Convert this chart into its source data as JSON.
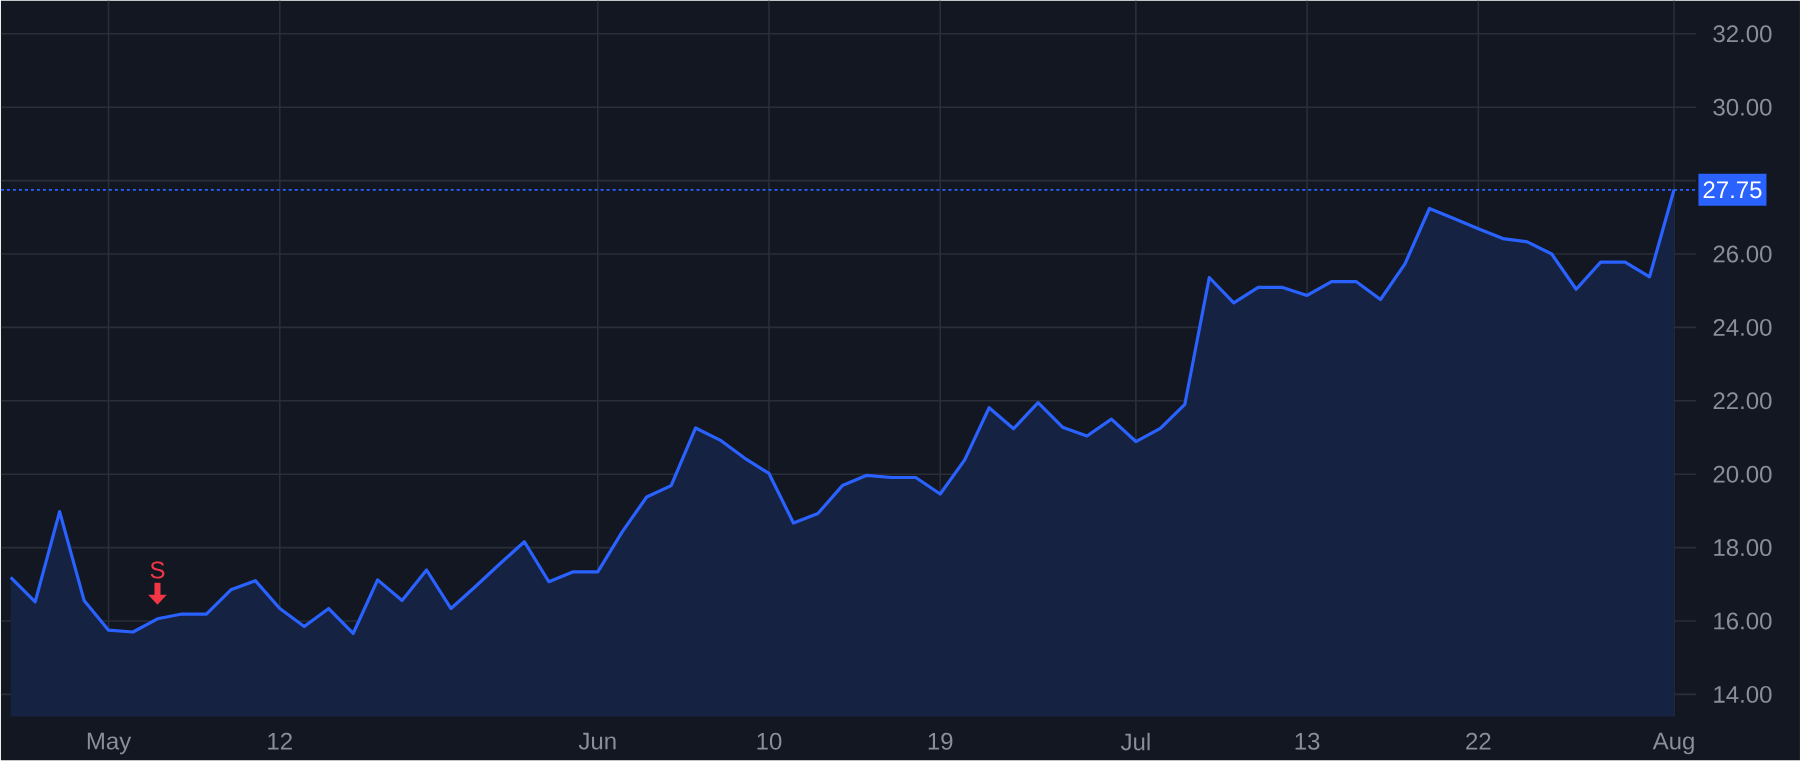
{
  "chart_data": {
    "type": "area",
    "color": "#2962ff",
    "categories": [
      null,
      null,
      null,
      null,
      "May",
      null,
      null,
      null,
      null,
      null,
      null,
      "12",
      null,
      null,
      null,
      null,
      null,
      null,
      null,
      null,
      null,
      null,
      null,
      null,
      "Jun",
      null,
      null,
      null,
      null,
      null,
      null,
      "10",
      null,
      null,
      null,
      null,
      null,
      null,
      "19",
      null,
      null,
      null,
      null,
      null,
      null,
      null,
      "Jul",
      null,
      null,
      null,
      null,
      null,
      null,
      "13",
      null,
      null,
      null,
      null,
      null,
      null,
      "22",
      null,
      null,
      null,
      null,
      null,
      null,
      null,
      "Aug"
    ],
    "values": [
      17.19,
      16.52,
      18.98,
      16.56,
      15.75,
      15.7,
      16.06,
      16.19,
      16.19,
      16.85,
      17.1,
      16.34,
      15.85,
      16.34,
      15.66,
      17.12,
      16.56,
      17.39,
      16.34,
      16.94,
      17.56,
      18.16,
      17.07,
      17.34,
      17.34,
      18.43,
      19.38,
      19.69,
      21.26,
      20.93,
      20.44,
      20.02,
      18.67,
      18.93,
      19.69,
      19.97,
      19.91,
      19.91,
      19.46,
      20.39,
      21.81,
      21.24,
      21.95,
      21.28,
      21.04,
      21.5,
      20.89,
      21.25,
      21.9,
      25.36,
      24.67,
      25.09,
      25.09,
      24.87,
      25.25,
      25.25,
      24.76,
      25.73,
      27.24,
      26.97,
      26.69,
      26.42,
      26.33,
      26.0,
      25.04,
      25.78,
      25.78,
      25.38,
      27.75
    ],
    "ylim": [
      13.4,
      32.9
    ],
    "yticks": [
      {
        "value": 14,
        "label": "14.00"
      },
      {
        "value": 16,
        "label": "16.00"
      },
      {
        "value": 18,
        "label": "18.00"
      },
      {
        "value": 20,
        "label": "20.00"
      },
      {
        "value": 22,
        "label": "22.00"
      },
      {
        "value": 24,
        "label": "24.00"
      },
      {
        "value": 26,
        "label": "26.00"
      },
      {
        "value": 28,
        "label": null
      },
      {
        "value": 30,
        "label": "30.00"
      },
      {
        "value": 32,
        "label": "32.00"
      }
    ],
    "grid": true,
    "ref_lines": [
      {
        "axis": "y",
        "value": 27.75,
        "label": "27.75",
        "color": "#2962ff",
        "line_style": "dotted"
      }
    ],
    "annotations": [
      {
        "text": "S",
        "y": 16.06
      }
    ]
  }
}
